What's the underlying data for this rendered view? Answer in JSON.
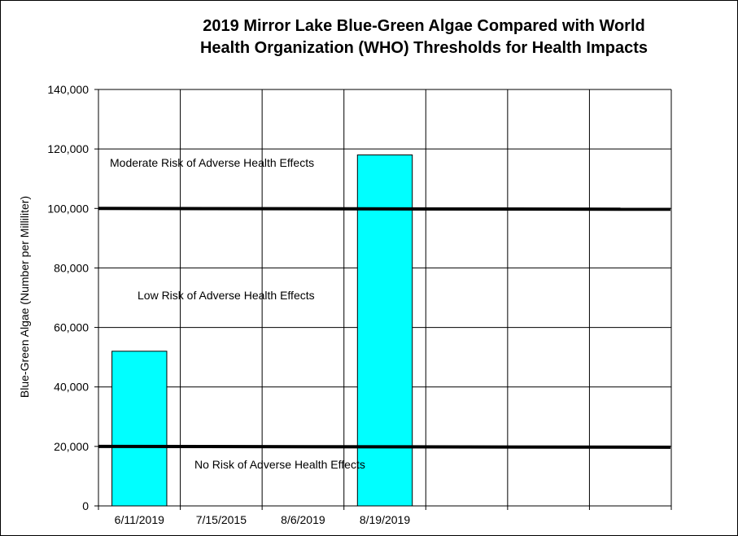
{
  "chart_data": {
    "type": "bar",
    "title_line1": "2019 Mirror Lake  Blue-Green Algae Compared with World",
    "title_line2": "Health Organization (WHO) Thresholds for Health Impacts",
    "ylabel": "Blue-Green Algae (Number per Milliliter)",
    "xlabel": "",
    "categories": [
      "6/11/2019",
      "7/15/2015",
      "8/6/2019",
      "8/19/2019",
      "",
      "",
      ""
    ],
    "values": [
      52000,
      null,
      null,
      118000,
      null,
      null,
      null
    ],
    "ylim": [
      0,
      140000
    ],
    "yticks": [
      0,
      20000,
      40000,
      60000,
      80000,
      100000,
      120000,
      140000
    ],
    "ytick_labels": [
      "0",
      "20,000",
      "40,000",
      "60,000",
      "80,000",
      "100,000",
      "120,000",
      "140,000"
    ],
    "thresholds": [
      {
        "value": 20000
      },
      {
        "value": 100000
      }
    ],
    "annotations": [
      {
        "text": "Moderate Risk of Adverse Health Effects"
      },
      {
        "text": "Low Risk of Adverse Health Effects"
      },
      {
        "text": "No Risk of Adverse Health Effects"
      }
    ],
    "bar_color": "#00ffff",
    "threshold_color": "#000000",
    "grid": true,
    "legend": "none"
  }
}
